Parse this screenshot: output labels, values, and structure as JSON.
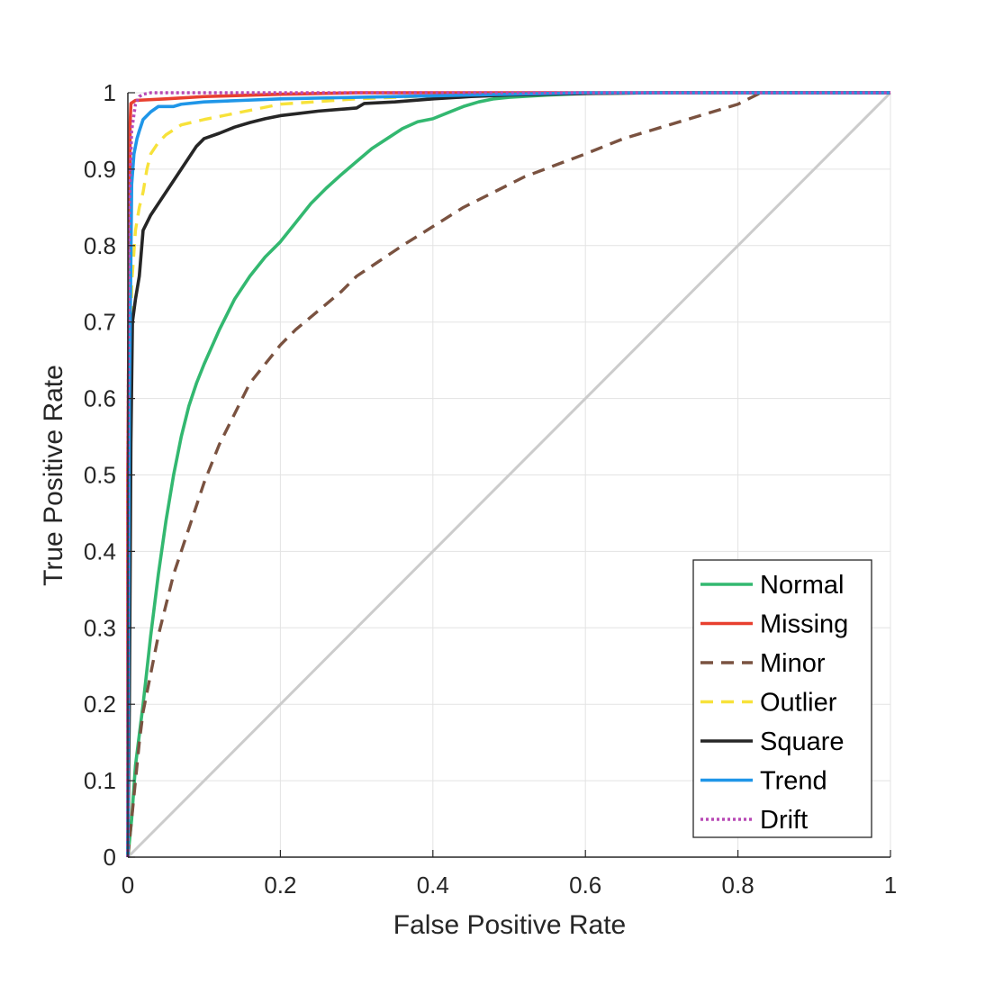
{
  "chart_data": {
    "type": "line",
    "title": "",
    "xlabel": "False Positive Rate",
    "ylabel": "True Positive Rate",
    "xlim": [
      0,
      1
    ],
    "ylim": [
      0,
      1
    ],
    "grid": true,
    "legend_position": "bottom-right",
    "x_ticks": [
      "0",
      "0.2",
      "0.4",
      "0.6",
      "0.8",
      "1"
    ],
    "y_ticks": [
      "0",
      "0.1",
      "0.2",
      "0.3",
      "0.4",
      "0.5",
      "0.6",
      "0.7",
      "0.8",
      "0.9",
      "1"
    ],
    "reference_line": {
      "points": [
        [
          0,
          0
        ],
        [
          1,
          1
        ]
      ],
      "color": "#cccccc"
    },
    "series": [
      {
        "name": "Normal",
        "color": "#33b870",
        "dash": "solid",
        "points": [
          [
            0,
            0
          ],
          [
            0.005,
            0.05
          ],
          [
            0.01,
            0.12
          ],
          [
            0.02,
            0.2
          ],
          [
            0.03,
            0.29
          ],
          [
            0.04,
            0.37
          ],
          [
            0.05,
            0.44
          ],
          [
            0.06,
            0.5
          ],
          [
            0.07,
            0.55
          ],
          [
            0.08,
            0.59
          ],
          [
            0.09,
            0.62
          ],
          [
            0.1,
            0.645
          ],
          [
            0.12,
            0.69
          ],
          [
            0.14,
            0.73
          ],
          [
            0.16,
            0.76
          ],
          [
            0.18,
            0.785
          ],
          [
            0.2,
            0.805
          ],
          [
            0.22,
            0.83
          ],
          [
            0.24,
            0.855
          ],
          [
            0.26,
            0.875
          ],
          [
            0.28,
            0.893
          ],
          [
            0.3,
            0.91
          ],
          [
            0.32,
            0.927
          ],
          [
            0.34,
            0.94
          ],
          [
            0.36,
            0.953
          ],
          [
            0.38,
            0.962
          ],
          [
            0.4,
            0.966
          ],
          [
            0.42,
            0.974
          ],
          [
            0.44,
            0.982
          ],
          [
            0.46,
            0.988
          ],
          [
            0.48,
            0.992
          ],
          [
            0.5,
            0.994
          ],
          [
            0.55,
            0.997
          ],
          [
            0.6,
            0.999
          ],
          [
            0.7,
            1.0
          ],
          [
            1.0,
            1.0
          ]
        ]
      },
      {
        "name": "Missing",
        "color": "#e8402f",
        "dash": "solid",
        "points": [
          [
            0,
            0
          ],
          [
            0,
            0.5
          ],
          [
            0.002,
            0.8
          ],
          [
            0.003,
            0.96
          ],
          [
            0.004,
            0.986
          ],
          [
            0.01,
            0.99
          ],
          [
            0.05,
            0.992
          ],
          [
            0.1,
            0.995
          ],
          [
            0.2,
            0.998
          ],
          [
            0.3,
            1.0
          ],
          [
            1.0,
            1.0
          ]
        ]
      },
      {
        "name": "Minor",
        "color": "#7a5240",
        "dash": "dashed",
        "points": [
          [
            0,
            0
          ],
          [
            0.005,
            0.05
          ],
          [
            0.01,
            0.1
          ],
          [
            0.015,
            0.15
          ],
          [
            0.02,
            0.19
          ],
          [
            0.03,
            0.24
          ],
          [
            0.04,
            0.29
          ],
          [
            0.05,
            0.33
          ],
          [
            0.06,
            0.37
          ],
          [
            0.08,
            0.43
          ],
          [
            0.1,
            0.49
          ],
          [
            0.12,
            0.54
          ],
          [
            0.14,
            0.58
          ],
          [
            0.16,
            0.62
          ],
          [
            0.18,
            0.645
          ],
          [
            0.2,
            0.67
          ],
          [
            0.22,
            0.69
          ],
          [
            0.25,
            0.715
          ],
          [
            0.28,
            0.74
          ],
          [
            0.3,
            0.76
          ],
          [
            0.33,
            0.78
          ],
          [
            0.36,
            0.8
          ],
          [
            0.4,
            0.825
          ],
          [
            0.44,
            0.85
          ],
          [
            0.48,
            0.87
          ],
          [
            0.52,
            0.89
          ],
          [
            0.56,
            0.905
          ],
          [
            0.6,
            0.92
          ],
          [
            0.65,
            0.94
          ],
          [
            0.7,
            0.955
          ],
          [
            0.75,
            0.97
          ],
          [
            0.8,
            0.985
          ],
          [
            0.83,
            1.0
          ],
          [
            0.86,
            1.0
          ],
          [
            1.0,
            1.0
          ]
        ]
      },
      {
        "name": "Outlier",
        "color": "#f7e23a",
        "dash": "dashed",
        "points": [
          [
            0,
            0
          ],
          [
            0.002,
            0.5
          ],
          [
            0.005,
            0.75
          ],
          [
            0.01,
            0.82
          ],
          [
            0.015,
            0.85
          ],
          [
            0.02,
            0.87
          ],
          [
            0.025,
            0.9
          ],
          [
            0.03,
            0.92
          ],
          [
            0.04,
            0.935
          ],
          [
            0.05,
            0.945
          ],
          [
            0.07,
            0.958
          ],
          [
            0.1,
            0.965
          ],
          [
            0.15,
            0.975
          ],
          [
            0.2,
            0.985
          ],
          [
            0.3,
            0.992
          ],
          [
            0.4,
            0.996
          ],
          [
            0.5,
            0.998
          ],
          [
            0.6,
            1.0
          ],
          [
            1.0,
            1.0
          ]
        ]
      },
      {
        "name": "Square",
        "color": "#262626",
        "dash": "solid",
        "points": [
          [
            0,
            0
          ],
          [
            0.002,
            0.2
          ],
          [
            0.004,
            0.54
          ],
          [
            0.006,
            0.7
          ],
          [
            0.01,
            0.73
          ],
          [
            0.015,
            0.76
          ],
          [
            0.02,
            0.82
          ],
          [
            0.025,
            0.83
          ],
          [
            0.03,
            0.84
          ],
          [
            0.04,
            0.855
          ],
          [
            0.05,
            0.87
          ],
          [
            0.06,
            0.885
          ],
          [
            0.07,
            0.9
          ],
          [
            0.08,
            0.915
          ],
          [
            0.09,
            0.93
          ],
          [
            0.1,
            0.94
          ],
          [
            0.12,
            0.947
          ],
          [
            0.14,
            0.955
          ],
          [
            0.16,
            0.961
          ],
          [
            0.18,
            0.966
          ],
          [
            0.2,
            0.97
          ],
          [
            0.25,
            0.976
          ],
          [
            0.3,
            0.98
          ],
          [
            0.31,
            0.986
          ],
          [
            0.35,
            0.988
          ],
          [
            0.4,
            0.992
          ],
          [
            0.45,
            0.995
          ],
          [
            0.5,
            0.997
          ],
          [
            0.6,
            0.999
          ],
          [
            0.7,
            1.0
          ],
          [
            1.0,
            1.0
          ]
        ]
      },
      {
        "name": "Trend",
        "color": "#1f96e8",
        "dash": "solid",
        "points": [
          [
            0,
            0
          ],
          [
            0.002,
            0.6
          ],
          [
            0.005,
            0.88
          ],
          [
            0.008,
            0.92
          ],
          [
            0.012,
            0.94
          ],
          [
            0.015,
            0.95
          ],
          [
            0.02,
            0.965
          ],
          [
            0.03,
            0.975
          ],
          [
            0.04,
            0.982
          ],
          [
            0.06,
            0.982
          ],
          [
            0.07,
            0.985
          ],
          [
            0.1,
            0.988
          ],
          [
            0.15,
            0.99
          ],
          [
            0.2,
            0.992
          ],
          [
            0.3,
            0.994
          ],
          [
            0.4,
            0.996
          ],
          [
            0.5,
            0.998
          ],
          [
            0.6,
            1.0
          ],
          [
            1.0,
            1.0
          ]
        ]
      },
      {
        "name": "Drift",
        "color": "#b84ab5",
        "dash": "dotted",
        "points": [
          [
            0,
            0
          ],
          [
            0,
            0.5
          ],
          [
            0.002,
            0.85
          ],
          [
            0.005,
            0.95
          ],
          [
            0.01,
            0.985
          ],
          [
            0.015,
            0.995
          ],
          [
            0.02,
            0.998
          ],
          [
            0.03,
            1.0
          ],
          [
            1.0,
            1.0
          ]
        ]
      }
    ]
  }
}
